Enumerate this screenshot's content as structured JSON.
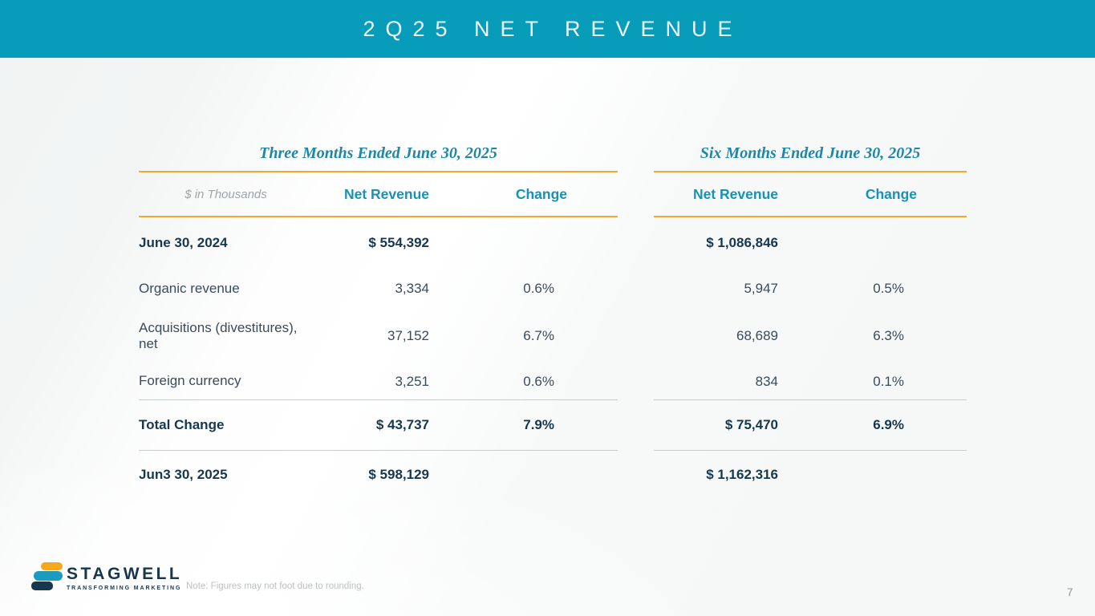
{
  "slide": {
    "title": "2Q25 NET REVENUE",
    "units_label": "$ in Thousands",
    "note": "Note: Figures may not foot due to rounding.",
    "page_number": "7"
  },
  "logo": {
    "name": "STAGWELL",
    "tagline": "TRANSFORMING MARKETING"
  },
  "colors": {
    "header_teal": "#089CBB",
    "column_header_teal": "#1791B4",
    "section_title_teal": "#1E86A6",
    "navy_text": "#16374E",
    "body_text": "#3A4B5C",
    "orange_rule": "#F3A72F",
    "gray_rule": "#C9CCCC",
    "logo_yellow": "#F6A81C",
    "logo_teal": "#1B9BC0",
    "logo_navy": "#16374D"
  },
  "tables": {
    "columns": [
      "Net Revenue",
      "Change"
    ],
    "row_labels": [
      "June 30, 2024",
      "Organic revenue",
      "Acquisitions (divestitures), net",
      "Foreign currency",
      "Total Change",
      "Jun3 30, 2025"
    ],
    "three_months": {
      "title": "Three Months Ended June 30, 2025",
      "net_revenue": [
        "$ 554,392",
        "3,334",
        "37,152",
        "3,251",
        "$ 43,737",
        "$ 598,129"
      ],
      "change": [
        "",
        "0.6%",
        "6.7%",
        "0.6%",
        "7.9%",
        ""
      ]
    },
    "six_months": {
      "title": "Six Months Ended June 30, 2025",
      "net_revenue": [
        "$ 1,086,846",
        "5,947",
        "68,689",
        "834",
        "$ 75,470",
        "$ 1,162,316"
      ],
      "change": [
        "",
        "0.5%",
        "6.3%",
        "0.1%",
        "6.9%",
        ""
      ]
    }
  }
}
